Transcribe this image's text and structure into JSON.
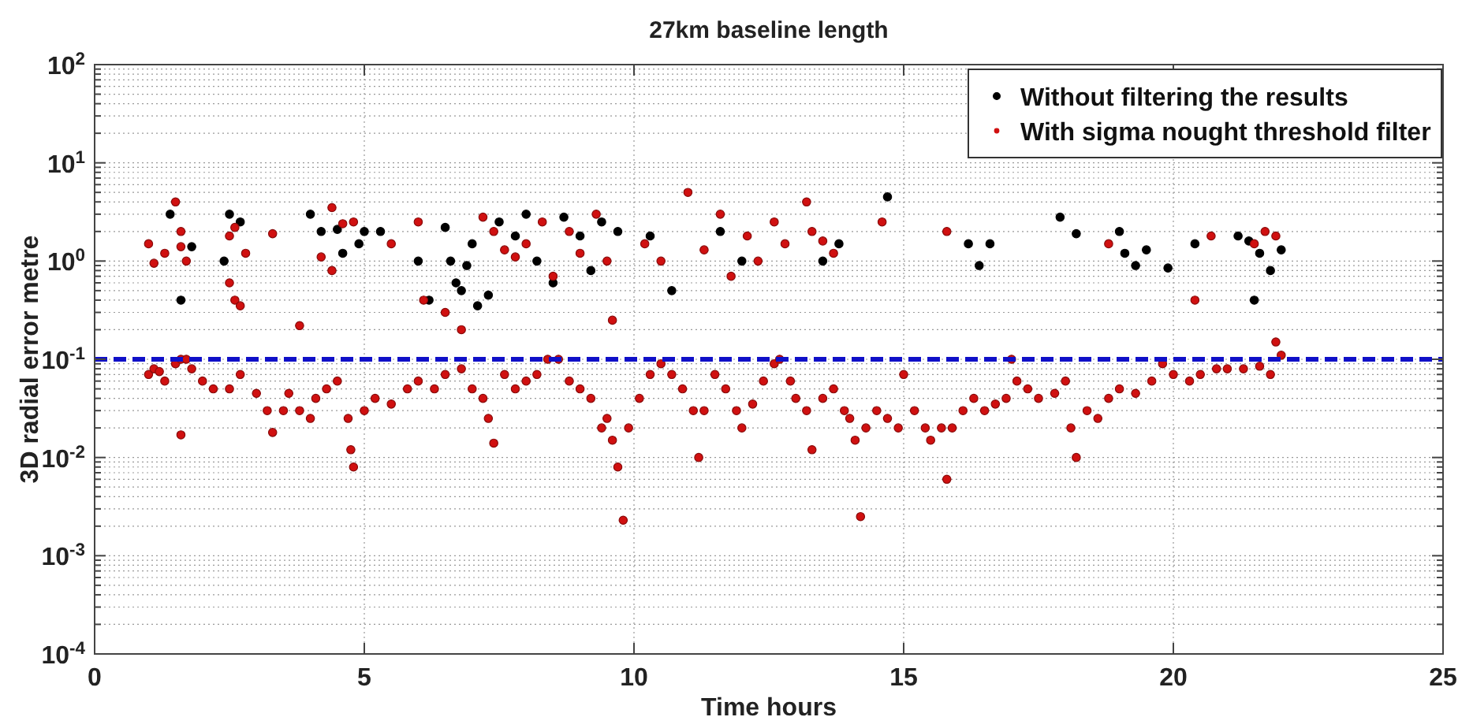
{
  "chart_data": {
    "type": "scatter",
    "title": "27km baseline length",
    "xlabel": "Time hours",
    "ylabel": "3D radial error metre",
    "log": "y",
    "grid": true,
    "legend": "top right",
    "marker": "circle",
    "xlim": [
      0,
      25
    ],
    "xticks": [
      0,
      5,
      10,
      15,
      20,
      25
    ],
    "ylim": [
      0.0001,
      100
    ],
    "yticks": [
      {
        "value": 0.0001,
        "label": "10$^{-4}$"
      },
      {
        "value": 0.0002,
        "label": null
      },
      {
        "value": 0.0003,
        "label": null
      },
      {
        "value": 0.0004,
        "label": null
      },
      {
        "value": 0.0005,
        "label": null
      },
      {
        "value": 0.0006,
        "label": null
      },
      {
        "value": 0.0007,
        "label": null
      },
      {
        "value": 0.0008,
        "label": null
      },
      {
        "value": 0.0009,
        "label": null
      },
      {
        "value": 0.001,
        "label": "10$^{-3}$"
      },
      {
        "value": 0.002,
        "label": null
      },
      {
        "value": 0.003,
        "label": null
      },
      {
        "value": 0.004,
        "label": null
      },
      {
        "value": 0.005,
        "label": null
      },
      {
        "value": 0.006,
        "label": null
      },
      {
        "value": 0.007,
        "label": null
      },
      {
        "value": 0.008,
        "label": null
      },
      {
        "value": 0.009,
        "label": null
      },
      {
        "value": 0.01,
        "label": "10$^{-2}$"
      },
      {
        "value": 0.02,
        "label": null
      },
      {
        "value": 0.03,
        "label": null
      },
      {
        "value": 0.04,
        "label": null
      },
      {
        "value": 0.05,
        "label": null
      },
      {
        "value": 0.06,
        "label": null
      },
      {
        "value": 0.07,
        "label": null
      },
      {
        "value": 0.08,
        "label": null
      },
      {
        "value": 0.09,
        "label": null
      },
      {
        "value": 0.1,
        "label": "10$^{-1}$"
      },
      {
        "value": 0.2,
        "label": null
      },
      {
        "value": 0.3,
        "label": null
      },
      {
        "value": 0.4,
        "label": null
      },
      {
        "value": 0.5,
        "label": null
      },
      {
        "value": 0.6,
        "label": null
      },
      {
        "value": 0.7,
        "label": null
      },
      {
        "value": 0.8,
        "label": null
      },
      {
        "value": 0.9,
        "label": null
      },
      {
        "value": 1,
        "label": "10$^{0}$"
      },
      {
        "value": 2,
        "label": null
      },
      {
        "value": 3,
        "label": null
      },
      {
        "value": 4,
        "label": null
      },
      {
        "value": 5,
        "label": null
      },
      {
        "value": 6,
        "label": null
      },
      {
        "value": 7,
        "label": null
      },
      {
        "value": 8,
        "label": null
      },
      {
        "value": 9,
        "label": null
      },
      {
        "value": 10,
        "label": "10$^{1}$"
      },
      {
        "value": 20,
        "label": null
      },
      {
        "value": 30,
        "label": null
      },
      {
        "value": 40,
        "label": null
      },
      {
        "value": 50,
        "label": null
      },
      {
        "value": 60,
        "label": null
      },
      {
        "value": 70,
        "label": null
      },
      {
        "value": 80,
        "label": null
      },
      {
        "value": 90,
        "label": null
      },
      {
        "value": 100,
        "label": "10$^{2}$"
      }
    ],
    "ref_lines": [
      {
        "axis": "y",
        "value": 0.1,
        "color": "#1010c8",
        "line_style": "dashed"
      }
    ],
    "series": [
      {
        "name": "Without filtering the results",
        "color": "#000000",
        "x": [
          1.4,
          1.6,
          1.8,
          2.4,
          2.5,
          2.7,
          4.0,
          4.2,
          4.5,
          4.6,
          4.9,
          5.0,
          5.3,
          6.0,
          6.2,
          6.5,
          6.6,
          6.7,
          6.8,
          6.9,
          7.0,
          7.1,
          7.3,
          7.5,
          7.8,
          8.0,
          8.2,
          8.5,
          8.7,
          9.0,
          9.2,
          9.4,
          9.7,
          10.3,
          10.7,
          11.6,
          12.0,
          13.5,
          13.8,
          14.7,
          16.2,
          16.4,
          16.6,
          17.9,
          18.2,
          19.0,
          19.1,
          19.3,
          19.5,
          19.9,
          20.4,
          21.2,
          21.4,
          21.5,
          21.6,
          21.8,
          22.0
        ],
        "values": [
          3.0,
          0.4,
          1.4,
          1.0,
          3.0,
          2.5,
          3.0,
          2.0,
          2.1,
          1.2,
          1.5,
          2.0,
          2.0,
          1.0,
          0.4,
          2.2,
          1.0,
          0.6,
          0.5,
          0.9,
          1.5,
          0.35,
          0.45,
          2.5,
          1.8,
          3.0,
          1.0,
          0.6,
          2.8,
          1.8,
          0.8,
          2.5,
          2.0,
          1.8,
          0.5,
          2.0,
          1.0,
          1.0,
          1.5,
          4.5,
          1.5,
          0.9,
          1.5,
          2.8,
          1.9,
          2.0,
          1.2,
          0.9,
          1.3,
          0.85,
          1.5,
          1.8,
          1.6,
          0.4,
          1.2,
          0.8,
          1.3
        ]
      },
      {
        "name": "With sigma nought threshold filter",
        "color": "#d01010",
        "x": [
          1.0,
          1.1,
          1.2,
          1.3,
          1.5,
          1.6,
          1.7,
          1.8,
          2.0,
          2.2,
          2.5,
          2.7,
          3.0,
          3.2,
          3.3,
          3.5,
          3.6,
          3.8,
          4.0,
          4.1,
          4.3,
          4.5,
          4.7,
          4.75,
          4.8,
          5.0,
          5.2,
          5.5,
          5.8,
          6.0,
          6.3,
          6.5,
          6.8,
          7.0,
          7.2,
          7.3,
          7.4,
          7.6,
          7.8,
          8.0,
          8.2,
          8.4,
          8.6,
          8.8,
          9.0,
          9.2,
          9.4,
          9.5,
          9.6,
          9.7,
          9.8,
          9.9,
          10.1,
          10.3,
          10.5,
          10.7,
          10.9,
          11.1,
          11.2,
          11.3,
          11.5,
          11.7,
          11.9,
          12.0,
          12.2,
          12.4,
          12.6,
          12.7,
          12.9,
          13.0,
          13.2,
          13.3,
          13.5,
          13.7,
          13.9,
          14.0,
          14.1,
          14.2,
          14.3,
          14.5,
          14.7,
          14.9,
          15.0,
          15.2,
          15.4,
          15.5,
          15.7,
          15.8,
          15.9,
          16.1,
          16.3,
          16.5,
          16.7,
          16.9,
          17.0,
          17.1,
          17.3,
          17.5,
          17.8,
          18.0,
          18.1,
          18.2,
          18.4,
          18.6,
          18.8,
          19.0,
          19.3,
          19.6,
          19.8,
          20.0,
          20.3,
          20.5,
          20.8,
          21.0,
          21.3,
          21.6,
          21.8,
          21.9,
          22.0,
          1.6,
          1.0,
          1.1,
          1.3,
          1.5,
          1.6,
          1.6,
          1.7,
          2.5,
          2.5,
          2.6,
          2.7,
          2.6,
          2.8,
          3.3,
          3.8,
          4.2,
          4.4,
          4.4,
          4.6,
          4.8,
          5.5,
          6.0,
          6.1,
          6.5,
          6.8,
          7.2,
          7.4,
          7.6,
          7.8,
          8.0,
          8.3,
          8.5,
          8.8,
          9.0,
          9.3,
          9.5,
          9.6,
          10.2,
          10.5,
          11.0,
          11.3,
          11.6,
          11.8,
          12.1,
          12.3,
          12.6,
          12.8,
          13.2,
          13.3,
          13.5,
          13.7,
          14.6,
          15.8,
          18.8,
          20.4,
          20.7,
          21.5,
          21.7,
          21.9
        ],
        "values": [
          0.07,
          0.08,
          0.075,
          0.06,
          0.09,
          0.1,
          0.1,
          0.08,
          0.06,
          0.05,
          0.05,
          0.07,
          0.045,
          0.03,
          0.018,
          0.03,
          0.045,
          0.03,
          0.025,
          0.04,
          0.05,
          0.06,
          0.025,
          0.012,
          0.008,
          0.03,
          0.04,
          0.035,
          0.05,
          0.06,
          0.05,
          0.07,
          0.08,
          0.05,
          0.04,
          0.025,
          0.014,
          0.07,
          0.05,
          0.06,
          0.07,
          0.1,
          0.1,
          0.06,
          0.05,
          0.04,
          0.02,
          0.025,
          0.015,
          0.008,
          0.0023,
          0.02,
          0.04,
          0.07,
          0.09,
          0.07,
          0.05,
          0.03,
          0.01,
          0.03,
          0.07,
          0.05,
          0.03,
          0.02,
          0.035,
          0.06,
          0.09,
          0.1,
          0.06,
          0.04,
          0.03,
          0.012,
          0.04,
          0.05,
          0.03,
          0.025,
          0.015,
          0.0025,
          0.02,
          0.03,
          0.025,
          0.02,
          0.07,
          0.03,
          0.02,
          0.015,
          0.02,
          0.006,
          0.02,
          0.03,
          0.04,
          0.03,
          0.035,
          0.04,
          0.1,
          0.06,
          0.05,
          0.04,
          0.045,
          0.06,
          0.02,
          0.01,
          0.03,
          0.025,
          0.04,
          0.05,
          0.045,
          0.06,
          0.09,
          0.07,
          0.06,
          0.07,
          0.08,
          0.08,
          0.08,
          0.085,
          0.07,
          0.15,
          0.11,
          0.017,
          1.5,
          0.95,
          1.2,
          4.0,
          2.0,
          1.4,
          1.0,
          0.6,
          1.8,
          0.4,
          0.35,
          2.2,
          1.2,
          1.9,
          0.22,
          1.1,
          3.5,
          0.8,
          2.4,
          2.5,
          1.5,
          2.5,
          0.4,
          0.3,
          0.2,
          2.8,
          2.0,
          1.3,
          1.1,
          1.5,
          2.5,
          0.7,
          2.0,
          1.2,
          3.0,
          1.0,
          0.25,
          1.5,
          1.0,
          5.0,
          1.3,
          3.0,
          0.7,
          1.8,
          1.0,
          2.5,
          1.5,
          4.0,
          2.0,
          1.6,
          1.2,
          2.5,
          2.0,
          1.5,
          0.4,
          1.8,
          1.5,
          2.0,
          1.8
        ]
      }
    ]
  }
}
